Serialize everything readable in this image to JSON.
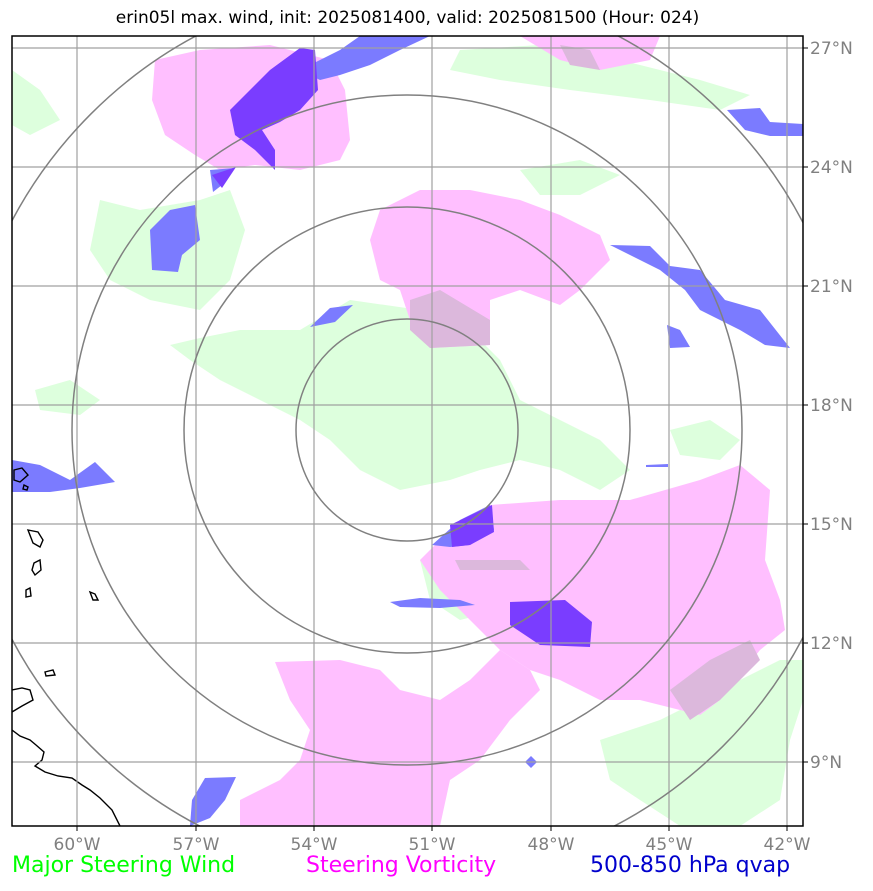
{
  "title": "erin05l max. wind, init: 2025081400, valid: 2025081500 (Hour: 024)",
  "lon_labels": [
    "60°W",
    "57°W",
    "54°W",
    "51°W",
    "48°W",
    "45°W",
    "42°W"
  ],
  "lat_labels": [
    "27°N",
    "24°N",
    "21°N",
    "18°N",
    "15°N",
    "12°N",
    "9°N"
  ],
  "legend": {
    "steering_wind": "Major Steering Wind",
    "steering_vorticity": "Steering Vorticity",
    "qvap": "500-850 hPa qvap"
  },
  "colors": {
    "steering_wind": "#00ff00",
    "steering_vorticity": "#ff00ff",
    "qvap": "#0000cc",
    "wind_fill": "#ddffdd",
    "vorticity_fill": "#ffbfff",
    "qvap_fill": "#7b7bff",
    "qvap_strong": "#7a3dff",
    "grid": "#a0a0a0",
    "range_rings": "#808080",
    "coastline": "#000000"
  },
  "map": {
    "lon_range": [
      -61.6,
      -41.7
    ],
    "lat_range": [
      7.5,
      27.3
    ],
    "storm_center": {
      "lon": -51.6,
      "lat": 17.4
    },
    "range_rings_deg": [
      2.8,
      5.6,
      8.4,
      11.2
    ]
  }
}
